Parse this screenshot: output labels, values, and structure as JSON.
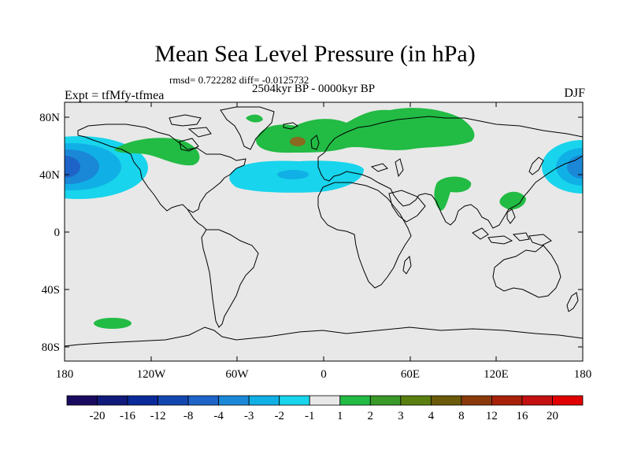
{
  "title": "Mean Sea Level Pressure (in hPa)",
  "stats": "rmsd= 0.722282 diff= -0.0125732",
  "period": "2504kyr BP - 0000kyr BP",
  "experiment": "Expt = tfMfy-tfmea",
  "season": "DJF",
  "lat_labels": [
    "80N",
    "40N",
    "0",
    "40S",
    "80S"
  ],
  "lon_labels": [
    "180",
    "120W",
    "60W",
    "0",
    "60E",
    "120E",
    "180"
  ],
  "colorbar": {
    "labels": [
      "-20",
      "-16",
      "-12",
      "-8",
      "-4",
      "-3",
      "-2",
      "-1",
      "1",
      "2",
      "3",
      "4",
      "8",
      "12",
      "16",
      "20"
    ],
    "colors": [
      "#1a0a5e",
      "#101a7a",
      "#0a2a99",
      "#1446b0",
      "#1e64c8",
      "#1a88d6",
      "#10b0e6",
      "#18d4ec",
      "#e8e8e8",
      "#22bb44",
      "#3a9a28",
      "#5a7f10",
      "#6a5a0a",
      "#8a3a0a",
      "#a82008",
      "#c41010",
      "#e00000"
    ]
  },
  "colors": {
    "land_bg": "#e8e8e8",
    "positive_1": "#22bb44",
    "positive_2": "#8a6a20",
    "negative_1": "#18d4ec",
    "negative_2": "#10b0e6",
    "negative_3": "#1a88d6",
    "negative_4": "#1e64c8"
  }
}
